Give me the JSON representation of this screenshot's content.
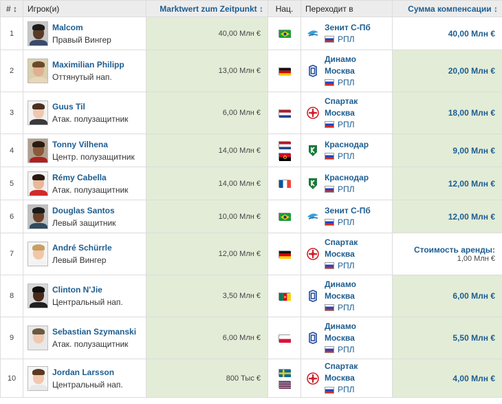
{
  "header": {
    "num": "#",
    "num_sort": "↕",
    "player": "Игрок(и)",
    "value": "Marktwert zum Zeitpunkt",
    "value_sort": "↕",
    "nat": "Нац.",
    "club": "Переходит в",
    "fee": "Сумма компенсации",
    "fee_sort": "↕"
  },
  "colors": {
    "link": "#1d5d90",
    "highlight": "#e3ecd7",
    "header_bg": "#ececec"
  },
  "rows": [
    {
      "num": "1",
      "name": "Malcom",
      "pos": "Правый Вингер",
      "value": "40,00 Млн €",
      "flags": [
        "brazil-flag"
      ],
      "club": "Зенит С-Пб",
      "club_line2": "",
      "league": "РПЛ",
      "logo": "zenit-logo",
      "fee": "40,00 Млн €",
      "fee2": ""
    },
    {
      "num": "2",
      "name": "Maximilian Philipp",
      "pos": "Оттянутый нап.",
      "value": "13,00 Млн €",
      "flags": [
        "germany-flag"
      ],
      "club": "Динамо",
      "club_line2": "Москва",
      "league": "РПЛ",
      "logo": "dynamo-logo",
      "fee": "20,00 Млн €",
      "fee2": ""
    },
    {
      "num": "3",
      "name": "Guus Til",
      "pos": "Атак. полузащитник",
      "value": "6,00 Млн €",
      "flags": [
        "netherlands-flag"
      ],
      "club": "Спартак",
      "club_line2": "Москва",
      "league": "РПЛ",
      "logo": "spartak-logo",
      "fee": "18,00 Млн €",
      "fee2": ""
    },
    {
      "num": "4",
      "name": "Tonny Vilhena",
      "pos": "Центр. полузащитник",
      "value": "14,00 Млн €",
      "flags": [
        "netherlands-flag",
        "angola-flag"
      ],
      "club": "Краснодар",
      "club_line2": "",
      "league": "РПЛ",
      "logo": "krasnodar-logo",
      "fee": "9,00 Млн €",
      "fee2": ""
    },
    {
      "num": "5",
      "name": "Rémy Cabella",
      "pos": "Атак. полузащитник",
      "value": "14,00 Млн €",
      "flags": [
        "france-flag"
      ],
      "club": "Краснодар",
      "club_line2": "",
      "league": "РПЛ",
      "logo": "krasnodar-logo",
      "fee": "12,00 Млн €",
      "fee2": ""
    },
    {
      "num": "6",
      "name": "Douglas Santos",
      "pos": "Левый защитник",
      "value": "10,00 Млн €",
      "flags": [
        "brazil-flag"
      ],
      "club": "Зенит С-Пб",
      "club_line2": "",
      "league": "РПЛ",
      "logo": "zenit-logo",
      "fee": "12,00 Млн €",
      "fee2": ""
    },
    {
      "num": "7",
      "name": "André Schürrle",
      "pos": "Левый Вингер",
      "value": "12,00 Млн €",
      "flags": [
        "germany-flag"
      ],
      "club": "Спартак",
      "club_line2": "Москва",
      "league": "РПЛ",
      "logo": "spartak-logo",
      "fee": "Стоимость аренды:",
      "fee2": "1,00 Млн €"
    },
    {
      "num": "8",
      "name": "Clinton N'Jie",
      "pos": "Центральный нап.",
      "value": "3,50 Млн €",
      "flags": [
        "cameroon-flag"
      ],
      "club": "Динамо",
      "club_line2": "Москва",
      "league": "РПЛ",
      "logo": "dynamo-logo",
      "fee": "6,00 Млн €",
      "fee2": ""
    },
    {
      "num": "9",
      "name": "Sebastian Szymanski",
      "pos": "Атак. полузащитник",
      "value": "6,00 Млн €",
      "flags": [
        "poland-flag"
      ],
      "club": "Динамо",
      "club_line2": "Москва",
      "league": "РПЛ",
      "logo": "dynamo-logo",
      "fee": "5,50 Млн €",
      "fee2": ""
    },
    {
      "num": "10",
      "name": "Jordan Larsson",
      "pos": "Центральный нап.",
      "value": "800 Тыс €",
      "flags": [
        "sweden-flag",
        "usa-flag"
      ],
      "club": "Спартак",
      "club_line2": "Москва",
      "league": "РПЛ",
      "logo": "spartak-logo",
      "fee": "4,00 Млн €",
      "fee2": ""
    }
  ]
}
